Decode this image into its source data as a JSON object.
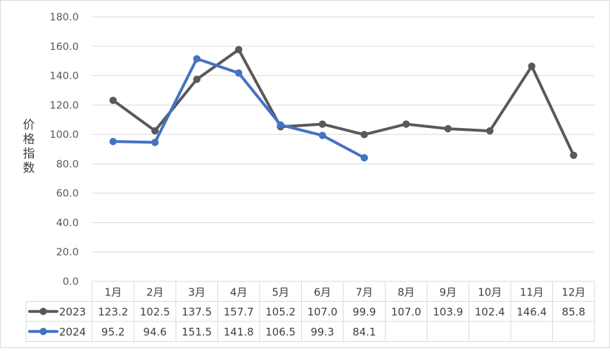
{
  "chart_data": {
    "type": "line",
    "title": "",
    "xlabel": "",
    "ylabel": "价格指数",
    "ylim": [
      0,
      180
    ],
    "ytick_labels": [
      "0.0",
      "20.0",
      "40.0",
      "60.0",
      "80.0",
      "100.0",
      "120.0",
      "140.0",
      "160.0",
      "180.0"
    ],
    "categories": [
      "1月",
      "2月",
      "3月",
      "4月",
      "5月",
      "6月",
      "7月",
      "8月",
      "9月",
      "10月",
      "11月",
      "12月"
    ],
    "grid": true,
    "legend": "data-table",
    "series": [
      {
        "name": "2023",
        "color": "#595959",
        "values": [
          123.2,
          102.5,
          137.5,
          157.7,
          105.2,
          107.0,
          99.9,
          107.0,
          103.9,
          102.4,
          146.4,
          85.8
        ],
        "labels": [
          "123.2",
          "102.5",
          "137.5",
          "157.7",
          "105.2",
          "107.0",
          "99.9",
          "107.0",
          "103.9",
          "102.4",
          "146.4",
          "85.8"
        ]
      },
      {
        "name": "2024",
        "color": "#4472C4",
        "values": [
          95.2,
          94.6,
          151.5,
          141.8,
          106.5,
          99.3,
          84.1,
          null,
          null,
          null,
          null,
          null
        ],
        "labels": [
          "95.2",
          "94.6",
          "151.5",
          "141.8",
          "106.5",
          "99.3",
          "84.1",
          "",
          "",
          "",
          "",
          ""
        ]
      }
    ]
  }
}
